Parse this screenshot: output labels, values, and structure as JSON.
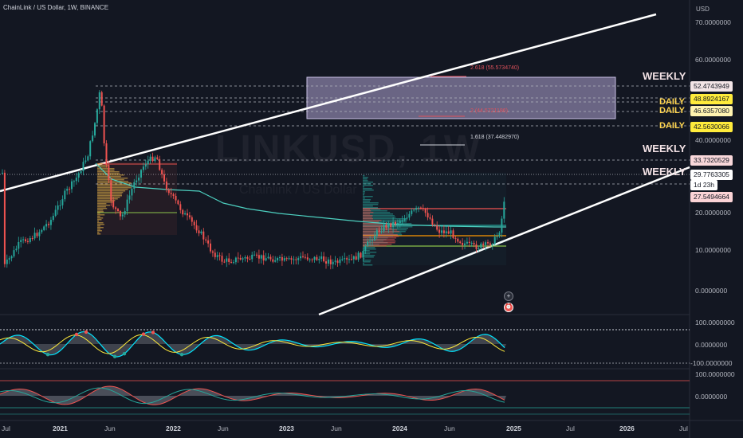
{
  "header": {
    "symbol_line": "ChainLink / US Dollar, 1W, BINANCE",
    "currency": "USD"
  },
  "watermark": {
    "ticker": "LINKUSD, 1W",
    "name": "Chainlink / US Dollar"
  },
  "price_axis": [
    "70.0000000",
    "60.0000000",
    "40.0000000",
    "20.0000000",
    "10.0000000",
    "0.0000000"
  ],
  "price_badges": [
    {
      "label": "52.4743949",
      "bg": "#f3e5e7",
      "fg": "#131722"
    },
    {
      "label": "48.8924167",
      "bg": "#ffeb3b",
      "fg": "#131722"
    },
    {
      "label": "46.6357080",
      "bg": "#fff3b0",
      "fg": "#131722"
    },
    {
      "label": "42.5630066",
      "bg": "#ffeb3b",
      "fg": "#131722"
    },
    {
      "label": "33.7320529",
      "bg": "#f8d7da",
      "fg": "#131722"
    },
    {
      "label": "29.7763305",
      "bg": "#ffffff",
      "fg": "#131722"
    },
    {
      "label": "1d 23h",
      "bg": "#ffffff",
      "fg": "#131722"
    },
    {
      "label": "27.5494664",
      "bg": "#fbd3d6",
      "fg": "#131722"
    }
  ],
  "level_tags": [
    {
      "text": "WEEKLY",
      "color": "#f3e2e5"
    },
    {
      "text": "DAILY",
      "color": "#ffd54f"
    },
    {
      "text": "DAILY",
      "color": "#ffd54f"
    },
    {
      "text": "DAILY",
      "color": "#ffd54f"
    },
    {
      "text": "WEEKLY",
      "color": "#f3e2e5"
    },
    {
      "text": "WEEKLY",
      "color": "#f3e2e5"
    }
  ],
  "fib_labels": [
    {
      "text": "2.618 (55.5734740)",
      "color": "#e0525c"
    },
    {
      "text": "2 (44.5721186)",
      "color": "#e0525c"
    },
    {
      "text": "1.618 (37.4482970)",
      "color": "#d1d4dc"
    }
  ],
  "osc1_axis": [
    "100.0000000",
    "0.0000000",
    "-100.0000000"
  ],
  "osc2_axis": [
    "100.0000000",
    "0.0000000"
  ],
  "time_axis": [
    {
      "label": "Jul",
      "bold": false
    },
    {
      "label": "2021",
      "bold": true
    },
    {
      "label": "Jun",
      "bold": false
    },
    {
      "label": "2022",
      "bold": true
    },
    {
      "label": "Jun",
      "bold": false
    },
    {
      "label": "2023",
      "bold": true
    },
    {
      "label": "Jun",
      "bold": false
    },
    {
      "label": "2024",
      "bold": true
    },
    {
      "label": "Jun",
      "bold": false
    },
    {
      "label": "2025",
      "bold": true
    },
    {
      "label": "Jul",
      "bold": false
    },
    {
      "label": "2026",
      "bold": true
    },
    {
      "label": "Jul",
      "bold": false
    }
  ],
  "colors": {
    "background": "#131722",
    "up": "#26a69a",
    "down": "#ef5350",
    "ema": "#4dd0c0",
    "channel": "#ffffff",
    "zone": "#b3a6d6"
  },
  "icons": {
    "add_alert": "plus-circle-icon",
    "alert": "alarm-icon"
  }
}
